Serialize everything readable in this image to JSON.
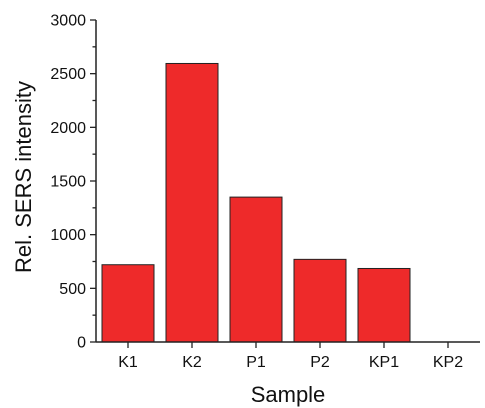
{
  "chart_data": {
    "type": "bar",
    "title": "",
    "xlabel": "Sample",
    "ylabel": "Rel. SERS intensity",
    "categories": [
      "K1",
      "K2",
      "P1",
      "P2",
      "KP1",
      "KP2"
    ],
    "values": [
      720,
      2595,
      1350,
      770,
      685,
      0
    ],
    "ylim": [
      0,
      3000
    ],
    "yticks": [
      0,
      500,
      1000,
      1500,
      2000,
      2500,
      3000
    ],
    "grid": false,
    "bar_color": "#ee2a2a"
  }
}
